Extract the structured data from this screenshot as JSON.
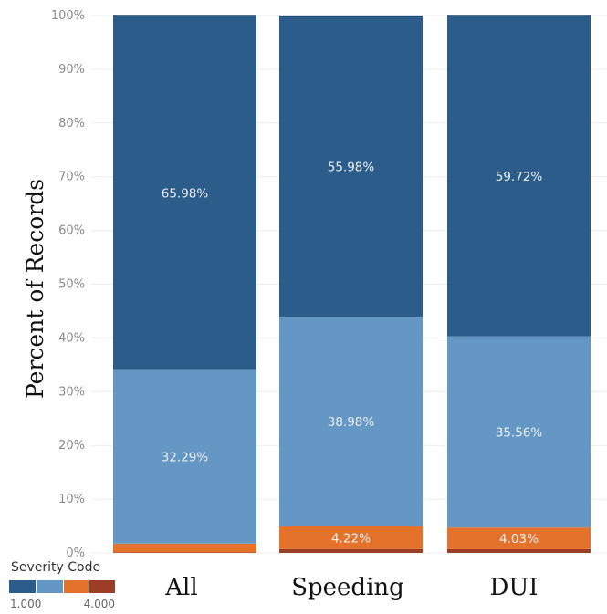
{
  "chart_data": {
    "type": "bar",
    "stacked": true,
    "percent": true,
    "ylabel": "Percent of Records",
    "ylim": [
      0,
      100
    ],
    "yticks": [
      0,
      10,
      20,
      30,
      40,
      50,
      60,
      70,
      80,
      90,
      100
    ],
    "ytick_labels": [
      "0%",
      "10%",
      "20%",
      "30%",
      "40%",
      "50%",
      "60%",
      "70%",
      "80%",
      "90%",
      "100%"
    ],
    "grid": true,
    "categories": [
      "All",
      "Speeding",
      "DUI"
    ],
    "series": [
      {
        "color": "#9c3d25",
        "values": [
          0.1,
          0.72,
          0.69
        ]
      },
      {
        "color": "#e5722a",
        "values": [
          1.63,
          4.22,
          4.03
        ]
      },
      {
        "color": "#6497c4",
        "values": [
          32.29,
          38.98,
          35.56
        ]
      },
      {
        "color": "#2c5c8a",
        "values": [
          65.98,
          55.98,
          59.72
        ]
      }
    ],
    "labels": [
      [
        null,
        null,
        null
      ],
      [
        null,
        "4.22%",
        "4.03%"
      ],
      [
        "32.29%",
        "38.98%",
        "35.56%"
      ],
      [
        "65.98%",
        "55.98%",
        "59.72%"
      ]
    ],
    "label_colors": {
      "light": "#ffffff",
      "dark_bg_text": "#e8eef5"
    },
    "legend": {
      "title": "Severity Code",
      "range_min": "1.000",
      "range_max": "4.000",
      "colors": [
        "#2c5c8a",
        "#6497c4",
        "#e5722a",
        "#9c3d25"
      ],
      "placement": "bottom-left"
    }
  }
}
